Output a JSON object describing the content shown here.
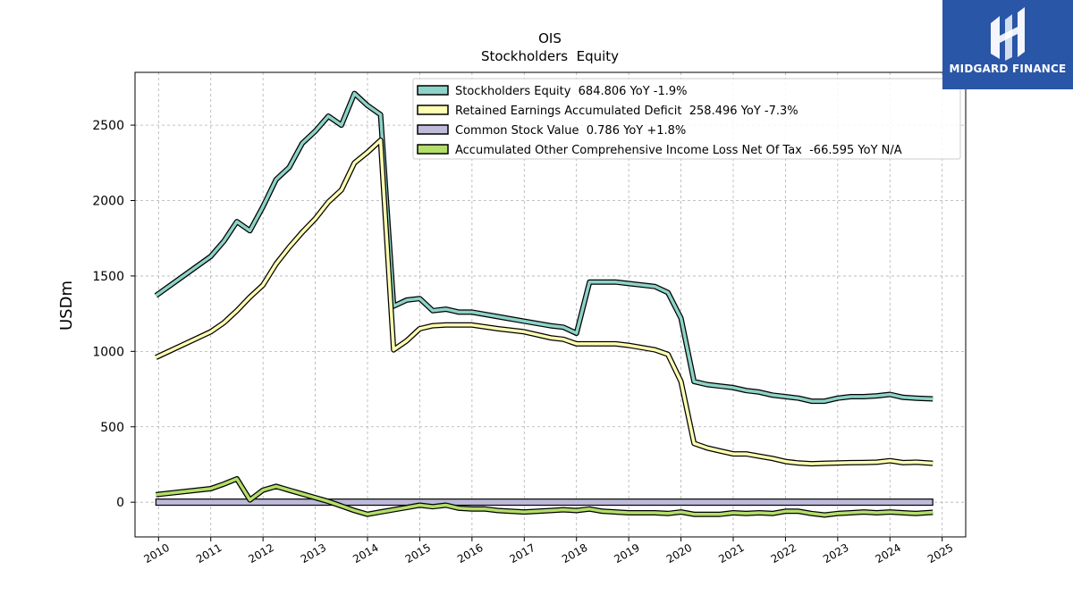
{
  "chart_data": {
    "type": "line",
    "title": "OIS",
    "subtitle": "Stockholders  Equity",
    "ylabel": "USDm",
    "xlim": [
      2009.55,
      2025.45
    ],
    "ylim": [
      -230,
      2850
    ],
    "xticks": [
      2010,
      2011,
      2012,
      2013,
      2014,
      2015,
      2016,
      2017,
      2018,
      2019,
      2020,
      2021,
      2022,
      2023,
      2024,
      2025
    ],
    "yticks": [
      0,
      500,
      1000,
      1500,
      2000,
      2500
    ],
    "grid": true,
    "legend_position": "top-right",
    "series": [
      {
        "name": "Stockholders Equity  684.806 YoY -1.9%",
        "color": "#8dd3c7",
        "style": "line",
        "points": [
          [
            2009.95,
            1370
          ],
          [
            2011.0,
            1630
          ],
          [
            2011.25,
            1730
          ],
          [
            2011.5,
            1860
          ],
          [
            2011.75,
            1800
          ],
          [
            2012.0,
            1960
          ],
          [
            2012.25,
            2140
          ],
          [
            2012.5,
            2220
          ],
          [
            2012.75,
            2380
          ],
          [
            2013.0,
            2460
          ],
          [
            2013.25,
            2560
          ],
          [
            2013.5,
            2500
          ],
          [
            2013.75,
            2710
          ],
          [
            2014.0,
            2630
          ],
          [
            2014.25,
            2570
          ],
          [
            2014.5,
            1300
          ],
          [
            2014.75,
            1340
          ],
          [
            2015.0,
            1350
          ],
          [
            2015.25,
            1270
          ],
          [
            2015.5,
            1280
          ],
          [
            2015.75,
            1260
          ],
          [
            2016.0,
            1260
          ],
          [
            2016.5,
            1230
          ],
          [
            2017.0,
            1200
          ],
          [
            2017.5,
            1170
          ],
          [
            2017.75,
            1160
          ],
          [
            2018.0,
            1120
          ],
          [
            2018.25,
            1460
          ],
          [
            2018.75,
            1460
          ],
          [
            2019.0,
            1450
          ],
          [
            2019.5,
            1430
          ],
          [
            2019.75,
            1390
          ],
          [
            2020.0,
            1220
          ],
          [
            2020.25,
            800
          ],
          [
            2020.5,
            780
          ],
          [
            2020.75,
            770
          ],
          [
            2021.0,
            760
          ],
          [
            2021.25,
            740
          ],
          [
            2021.5,
            730
          ],
          [
            2021.75,
            710
          ],
          [
            2022.0,
            700
          ],
          [
            2022.25,
            690
          ],
          [
            2022.5,
            670
          ],
          [
            2022.75,
            670
          ],
          [
            2023.0,
            690
          ],
          [
            2023.25,
            700
          ],
          [
            2023.5,
            700
          ],
          [
            2023.75,
            705
          ],
          [
            2024.0,
            715
          ],
          [
            2024.25,
            695
          ],
          [
            2024.5,
            690
          ],
          [
            2024.82,
            685
          ]
        ]
      },
      {
        "name": "Retained Earnings Accumulated Deficit  258.496 YoY -7.3%",
        "color": "#ffffb3",
        "style": "line",
        "points": [
          [
            2009.95,
            960
          ],
          [
            2011.0,
            1130
          ],
          [
            2011.25,
            1190
          ],
          [
            2011.5,
            1270
          ],
          [
            2011.75,
            1360
          ],
          [
            2012.0,
            1440
          ],
          [
            2012.25,
            1580
          ],
          [
            2012.5,
            1690
          ],
          [
            2012.75,
            1790
          ],
          [
            2013.0,
            1880
          ],
          [
            2013.25,
            1990
          ],
          [
            2013.5,
            2070
          ],
          [
            2013.75,
            2250
          ],
          [
            2014.0,
            2320
          ],
          [
            2014.25,
            2400
          ],
          [
            2014.5,
            1010
          ],
          [
            2014.75,
            1070
          ],
          [
            2015.0,
            1150
          ],
          [
            2015.25,
            1170
          ],
          [
            2015.5,
            1175
          ],
          [
            2015.75,
            1175
          ],
          [
            2016.0,
            1175
          ],
          [
            2016.5,
            1150
          ],
          [
            2017.0,
            1130
          ],
          [
            2017.5,
            1090
          ],
          [
            2017.75,
            1080
          ],
          [
            2018.0,
            1050
          ],
          [
            2018.25,
            1050
          ],
          [
            2018.75,
            1050
          ],
          [
            2019.0,
            1040
          ],
          [
            2019.5,
            1010
          ],
          [
            2019.75,
            980
          ],
          [
            2020.0,
            800
          ],
          [
            2020.25,
            390
          ],
          [
            2020.5,
            360
          ],
          [
            2020.75,
            340
          ],
          [
            2021.0,
            320
          ],
          [
            2021.25,
            320
          ],
          [
            2021.5,
            305
          ],
          [
            2021.75,
            290
          ],
          [
            2022.0,
            270
          ],
          [
            2022.25,
            260
          ],
          [
            2022.5,
            255
          ],
          [
            2022.75,
            258
          ],
          [
            2023.0,
            260
          ],
          [
            2023.25,
            262
          ],
          [
            2023.5,
            263
          ],
          [
            2023.75,
            265
          ],
          [
            2024.0,
            275
          ],
          [
            2024.25,
            262
          ],
          [
            2024.5,
            265
          ],
          [
            2024.82,
            258
          ]
        ]
      },
      {
        "name": "Common Stock Value  0.786 YoY +1.8%",
        "color": "#bebada",
        "style": "band",
        "points": [
          [
            2009.95,
            0.786
          ],
          [
            2024.82,
            0.786
          ]
        ]
      },
      {
        "name": "Accumulated Other Comprehensive Income Loss Net Of Tax  -66.595 YoY N/A",
        "color": "#b3de69",
        "style": "line",
        "points": [
          [
            2009.95,
            50
          ],
          [
            2011.0,
            90
          ],
          [
            2011.25,
            120
          ],
          [
            2011.5,
            155
          ],
          [
            2011.75,
            15
          ],
          [
            2012.0,
            80
          ],
          [
            2012.25,
            105
          ],
          [
            2012.5,
            80
          ],
          [
            2012.75,
            55
          ],
          [
            2013.0,
            30
          ],
          [
            2013.25,
            5
          ],
          [
            2013.5,
            -25
          ],
          [
            2013.75,
            -55
          ],
          [
            2014.0,
            -80
          ],
          [
            2014.25,
            -65
          ],
          [
            2014.5,
            -50
          ],
          [
            2014.75,
            -35
          ],
          [
            2015.0,
            -20
          ],
          [
            2015.25,
            -30
          ],
          [
            2015.5,
            -20
          ],
          [
            2015.75,
            -40
          ],
          [
            2016.0,
            -45
          ],
          [
            2016.25,
            -45
          ],
          [
            2016.5,
            -55
          ],
          [
            2017.0,
            -65
          ],
          [
            2017.5,
            -55
          ],
          [
            2017.75,
            -50
          ],
          [
            2018.0,
            -55
          ],
          [
            2018.25,
            -45
          ],
          [
            2018.5,
            -60
          ],
          [
            2018.75,
            -65
          ],
          [
            2019.0,
            -70
          ],
          [
            2019.5,
            -70
          ],
          [
            2019.75,
            -75
          ],
          [
            2020.0,
            -65
          ],
          [
            2020.25,
            -80
          ],
          [
            2020.75,
            -80
          ],
          [
            2021.0,
            -70
          ],
          [
            2021.25,
            -75
          ],
          [
            2021.5,
            -70
          ],
          [
            2021.75,
            -75
          ],
          [
            2022.0,
            -60
          ],
          [
            2022.25,
            -60
          ],
          [
            2022.5,
            -75
          ],
          [
            2022.75,
            -85
          ],
          [
            2023.0,
            -75
          ],
          [
            2023.25,
            -70
          ],
          [
            2023.5,
            -65
          ],
          [
            2023.75,
            -70
          ],
          [
            2024.0,
            -65
          ],
          [
            2024.25,
            -70
          ],
          [
            2024.5,
            -75
          ],
          [
            2024.82,
            -67
          ]
        ]
      }
    ]
  },
  "logo": {
    "text": "MIDGARD FINANCE",
    "background": "#2a56a8"
  }
}
